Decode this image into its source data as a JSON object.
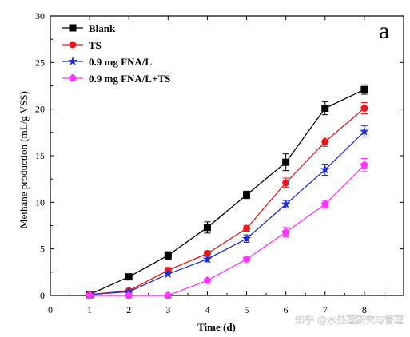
{
  "panel_label": "a",
  "watermark": "知乎 @水处理研究与管理",
  "chart_data": {
    "type": "line",
    "title": "",
    "xlabel": "Time (d)",
    "ylabel": "Methane production (mL/g VSS)",
    "xlim": [
      0,
      9
    ],
    "ylim": [
      0,
      30
    ],
    "xticks": [
      "0",
      "1",
      "2",
      "3",
      "4",
      "5",
      "6",
      "7",
      "8"
    ],
    "yticks": [
      "0",
      "5",
      "10",
      "15",
      "20",
      "25",
      "30"
    ],
    "legend_position": "top-left",
    "grid": false,
    "x": [
      1,
      2,
      3,
      4,
      5,
      6,
      7,
      8
    ],
    "series": [
      {
        "name": "Blank",
        "color": "#000000",
        "marker": "square",
        "values": [
          0.1,
          2.0,
          4.3,
          7.3,
          10.8,
          14.3,
          20.1,
          22.1
        ],
        "errors": [
          0.1,
          0.2,
          0.4,
          0.6,
          0.4,
          0.9,
          0.7,
          0.5
        ]
      },
      {
        "name": "TS",
        "color": "#e41a1c",
        "marker": "circle",
        "values": [
          0.1,
          0.5,
          2.7,
          4.5,
          7.2,
          12.1,
          16.5,
          20.1
        ],
        "errors": [
          0.1,
          0.1,
          0.3,
          0.3,
          0.3,
          0.5,
          0.5,
          0.6
        ]
      },
      {
        "name": "0.9 mg FNA/L",
        "color": "#1f2fd6",
        "marker": "star",
        "values": [
          0.1,
          0.4,
          2.3,
          3.9,
          6.1,
          9.8,
          13.5,
          17.6
        ],
        "errors": [
          0.1,
          0.1,
          0.2,
          0.3,
          0.4,
          0.4,
          0.6,
          0.6
        ]
      },
      {
        "name": "0.9 mg FNA/L+TS",
        "color": "#ff33ff",
        "marker": "pentagon",
        "values": [
          0.0,
          0.0,
          0.0,
          1.6,
          3.9,
          6.8,
          9.8,
          14.0
        ],
        "errors": [
          0.0,
          0.0,
          0.0,
          0.1,
          0.2,
          0.5,
          0.4,
          0.7
        ]
      }
    ]
  }
}
